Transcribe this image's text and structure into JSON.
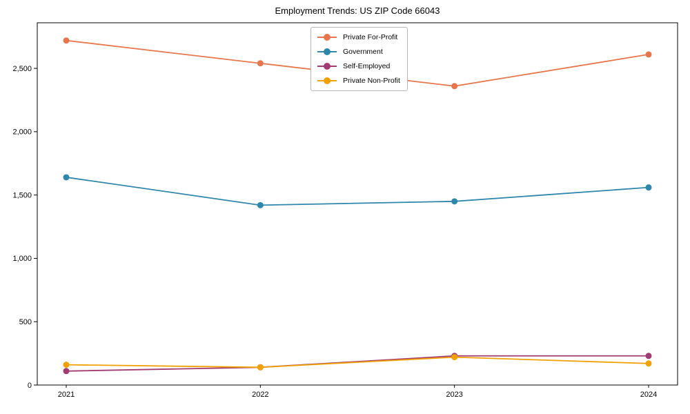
{
  "chart_data": {
    "type": "line",
    "title": "Employment Trends: US ZIP Code 66043",
    "x": [
      "2021",
      "2022",
      "2023",
      "2024"
    ],
    "series": [
      {
        "name": "Private For-Profit",
        "color": "#E8764C",
        "values": [
          2720,
          2540,
          2360,
          2610
        ]
      },
      {
        "name": "Government",
        "color": "#2E86AB",
        "values": [
          1640,
          1420,
          1450,
          1560
        ]
      },
      {
        "name": "Self-Employed",
        "color": "#A23B72",
        "values": [
          110,
          140,
          230,
          230
        ]
      },
      {
        "name": "Private Non-Profit",
        "color": "#F2A104",
        "values": [
          160,
          140,
          220,
          170
        ]
      }
    ],
    "xlabel": "",
    "ylabel": "",
    "ylim": [
      0,
      2860
    ],
    "yticks": [
      0,
      500,
      1000,
      1500,
      2000,
      2500
    ],
    "ytick_labels": [
      "0",
      "500",
      "1,000",
      "1,500",
      "2,000",
      "2,500"
    ],
    "grid": false,
    "legend_position": "top-center",
    "axis_color": "#000000",
    "tick_label_color": "#000000"
  }
}
